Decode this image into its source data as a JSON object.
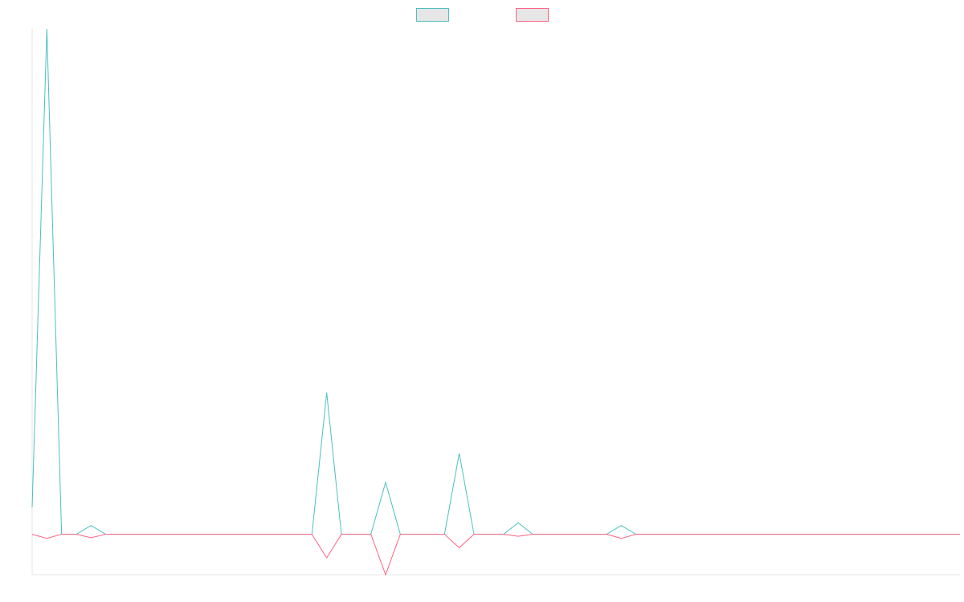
{
  "chart_data": {
    "type": "line",
    "title": "",
    "xlabel": "",
    "ylabel": "",
    "legend_position": "top-center",
    "grid": false,
    "x_count": 64,
    "ylim": [
      -6,
      75
    ],
    "series": [
      {
        "name": "",
        "color": "#4bc0c0",
        "fill": "#e6e6e6",
        "points": [
          [
            0,
            4
          ],
          [
            1,
            75
          ],
          [
            2,
            0
          ],
          [
            3,
            0
          ],
          [
            4,
            1.3
          ],
          [
            20,
            21
          ],
          [
            24,
            7.7
          ],
          [
            29,
            12
          ],
          [
            33,
            1.7
          ],
          [
            40,
            1.3
          ]
        ]
      },
      {
        "name": "",
        "color": "#ff6384",
        "fill": "#e6e6e6",
        "points": [
          [
            0,
            0
          ],
          [
            1,
            -0.6
          ],
          [
            2,
            0
          ],
          [
            3,
            0
          ],
          [
            4,
            -0.5
          ],
          [
            20,
            -3.5
          ],
          [
            24,
            -6
          ],
          [
            29,
            -2
          ],
          [
            33,
            -0.3
          ],
          [
            40,
            -0.6
          ]
        ]
      }
    ]
  }
}
